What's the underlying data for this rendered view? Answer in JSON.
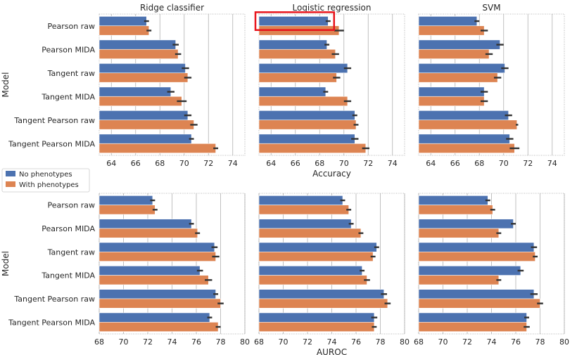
{
  "colors": {
    "no_phenotypes": "#4c72b0",
    "with_phenotypes": "#dd8452",
    "error_bar": "#333333",
    "grid": "#b0b0b0",
    "highlight_box": "#e8141c"
  },
  "legend": {
    "placement": "left, between rows",
    "entries": [
      "No phenotypes",
      "With phenotypes"
    ]
  },
  "highlight": {
    "description": "red rectangle around Logistic regression / Pearson raw / No phenotypes bar"
  },
  "chart_data": [
    {
      "type": "bar",
      "orientation": "horizontal",
      "title": "Ridge classifier",
      "xlabel": "",
      "ylabel": "Model",
      "xlim": [
        63,
        75
      ],
      "xticks": [
        "64",
        "66",
        "68",
        "70",
        "72",
        "74"
      ],
      "categories": [
        "Pearson raw",
        "Pearson MIDA",
        "Tangent raw",
        "Tangent MIDA",
        "Tangent Pearson raw",
        "Tangent Pearson MIDA"
      ],
      "series": [
        {
          "name": "No phenotypes",
          "values": [
            66.9,
            69.3,
            70.1,
            68.9,
            70.3,
            70.6
          ],
          "errors": [
            0.2,
            0.25,
            0.3,
            0.3,
            0.3,
            0.2
          ]
        },
        {
          "name": "With phenotypes",
          "values": [
            67.1,
            69.5,
            70.3,
            69.8,
            70.8,
            72.6
          ],
          "errors": [
            0.2,
            0.25,
            0.3,
            0.4,
            0.3,
            0.2
          ]
        }
      ]
    },
    {
      "type": "bar",
      "orientation": "horizontal",
      "title": "Logistic regression",
      "xlabel": "Accuracy",
      "ylabel": "",
      "xlim": [
        63,
        75
      ],
      "xticks": [
        "64",
        "66",
        "68",
        "70",
        "72",
        "74"
      ],
      "categories": [
        "Pearson raw",
        "Pearson MIDA",
        "Tangent raw",
        "Tangent MIDA",
        "Tangent Pearson raw",
        "Tangent Pearson MIDA"
      ],
      "series": [
        {
          "name": "No phenotypes",
          "values": [
            68.7,
            68.6,
            70.3,
            68.5,
            70.9,
            70.9
          ],
          "errors": [
            0.2,
            0.2,
            0.3,
            0.2,
            0.2,
            0.3
          ]
        },
        {
          "name": "With phenotypes",
          "values": [
            69.6,
            69.3,
            69.4,
            70.3,
            71.0,
            71.8
          ],
          "errors": [
            0.4,
            0.3,
            0.3,
            0.3,
            0.2,
            0.3
          ]
        }
      ]
    },
    {
      "type": "bar",
      "orientation": "horizontal",
      "title": "SVM",
      "xlabel": "",
      "ylabel": "",
      "xlim": [
        63,
        75
      ],
      "xticks": [
        "64",
        "66",
        "68",
        "70",
        "72",
        "74"
      ],
      "categories": [
        "Pearson raw",
        "Pearson MIDA",
        "Tangent raw",
        "Tangent MIDA",
        "Tangent Pearson raw",
        "Tangent Pearson MIDA"
      ],
      "series": [
        {
          "name": "No phenotypes",
          "values": [
            67.8,
            69.7,
            70.1,
            68.4,
            70.4,
            70.5
          ],
          "errors": [
            0.2,
            0.3,
            0.3,
            0.3,
            0.3,
            0.3
          ]
        },
        {
          "name": "With phenotypes",
          "values": [
            68.4,
            68.8,
            69.5,
            68.4,
            71.1,
            70.9
          ],
          "errors": [
            0.3,
            0.3,
            0.3,
            0.3,
            0.1,
            0.4
          ]
        }
      ]
    },
    {
      "type": "bar",
      "orientation": "horizontal",
      "title": "",
      "xlabel": "",
      "ylabel": "Model",
      "xlim": [
        68,
        80
      ],
      "xticks": [
        "68",
        "70",
        "72",
        "74",
        "76",
        "78",
        "80"
      ],
      "categories": [
        "Pearson raw",
        "Pearson MIDA",
        "Tangent raw",
        "Tangent MIDA",
        "Tangent Pearson raw",
        "Tangent Pearson MIDA"
      ],
      "series": [
        {
          "name": "No phenotypes",
          "values": [
            72.4,
            75.6,
            77.5,
            76.3,
            77.6,
            77.1
          ],
          "errors": [
            0.2,
            0.2,
            0.25,
            0.25,
            0.2,
            0.2
          ]
        },
        {
          "name": "With phenotypes",
          "values": [
            72.6,
            76.1,
            77.6,
            77.0,
            78.0,
            77.8
          ],
          "errors": [
            0.2,
            0.2,
            0.3,
            0.3,
            0.25,
            0.2
          ]
        }
      ]
    },
    {
      "type": "bar",
      "orientation": "horizontal",
      "title": "",
      "xlabel": "AUROC",
      "ylabel": "",
      "xlim": [
        68,
        80
      ],
      "xticks": [
        "68",
        "70",
        "72",
        "74",
        "76",
        "78",
        "80"
      ],
      "categories": [
        "Pearson raw",
        "Pearson MIDA",
        "Tangent raw",
        "Tangent MIDA",
        "Tangent Pearson raw",
        "Tangent Pearson MIDA"
      ],
      "series": [
        {
          "name": "No phenotypes",
          "values": [
            74.9,
            75.6,
            77.7,
            76.5,
            78.3,
            77.5
          ],
          "errors": [
            0.2,
            0.2,
            0.2,
            0.2,
            0.25,
            0.25
          ]
        },
        {
          "name": "With phenotypes",
          "values": [
            75.4,
            76.4,
            77.4,
            76.9,
            78.6,
            77.5
          ],
          "errors": [
            0.2,
            0.2,
            0.2,
            0.25,
            0.25,
            0.2
          ]
        }
      ]
    },
    {
      "type": "bar",
      "orientation": "horizontal",
      "title": "",
      "xlabel": "",
      "ylabel": "",
      "xlim": [
        68,
        80
      ],
      "xticks": [
        "68",
        "70",
        "72",
        "74",
        "76",
        "78",
        "80"
      ],
      "categories": [
        "Pearson raw",
        "Pearson MIDA",
        "Tangent raw",
        "Tangent MIDA",
        "Tangent Pearson raw",
        "Tangent Pearson MIDA"
      ],
      "series": [
        {
          "name": "No phenotypes",
          "values": [
            73.7,
            75.8,
            77.5,
            76.4,
            77.5,
            76.9
          ],
          "errors": [
            0.2,
            0.2,
            0.25,
            0.25,
            0.3,
            0.2
          ]
        },
        {
          "name": "With phenotypes",
          "values": [
            74.1,
            74.6,
            77.6,
            74.6,
            78.0,
            76.9
          ],
          "errors": [
            0.2,
            0.2,
            0.2,
            0.2,
            0.25,
            0.25
          ]
        }
      ]
    }
  ]
}
